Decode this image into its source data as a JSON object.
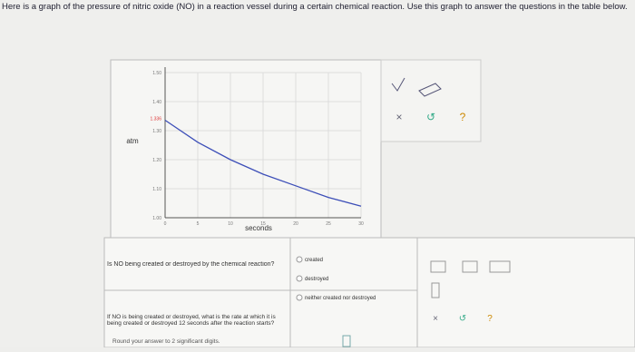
{
  "intro": {
    "text": "Here is a graph of the pressure of nitric oxide (NO) in a reaction vessel during a certain chemical reaction. Use this graph to answer the questions in the table below."
  },
  "chart_data": {
    "type": "line",
    "ylabel": "atm",
    "xlabel": "seconds",
    "annotation": "1.336",
    "x": [
      0,
      5,
      10,
      15,
      20,
      25,
      30
    ],
    "series": [
      {
        "color": "#3d4fb8",
        "values": [
          1.336,
          1.26,
          1.2,
          1.15,
          1.11,
          1.07,
          1.04
        ]
      }
    ],
    "xlim": [
      0,
      30
    ],
    "ylim": [
      1.0,
      1.5
    ],
    "xticks": [
      0,
      5,
      10,
      15,
      20,
      25,
      30
    ],
    "yticks": [
      {
        "value": 1.0,
        "label": "1.00"
      },
      {
        "value": 1.1,
        "label": "1.10"
      },
      {
        "value": 1.2,
        "label": "1.20"
      },
      {
        "value": 1.3,
        "label": "1.30"
      },
      {
        "value": 1.4,
        "label": "1.40"
      },
      {
        "value": 1.5,
        "label": "1.50"
      }
    ],
    "grid": true
  },
  "graph_tools": [
    "×",
    "↺",
    "?"
  ],
  "table": {
    "rows": [
      {
        "question": "Is NO being created or destroyed by the chemical reaction?",
        "options": [
          "created",
          "destroyed",
          "neither created nor destroyed"
        ]
      },
      {
        "question": "If NO is being created or destroyed, what is the rate at which it is being created or destroyed 12 seconds after the reaction starts?",
        "hint": "Round your answer to 2 significant digits."
      }
    ]
  },
  "answer_tools": [
    "×",
    "↺",
    "?"
  ]
}
